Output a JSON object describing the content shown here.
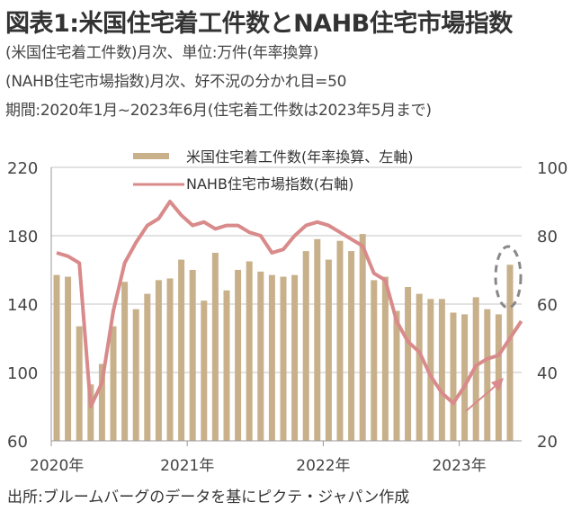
{
  "header": {
    "title": "図表1:米国住宅着工件数とNAHB住宅市場指数",
    "subtitles": [
      "(米国住宅着工件数)月次、単位:万件(年率換算)",
      "(NAHB住宅市場指数)月次、好不況の分かれ目=50",
      "期間:2020年1月~2023年6月(住宅着工件数は2023年5月まで)"
    ]
  },
  "footer": {
    "source": "出所:ブルームバーグのデータを基にピクテ・ジャパン作成"
  },
  "colors": {
    "bar": "#c8b08a",
    "line": "#d98a8a",
    "grid": "#e2e2e2",
    "annotation": "#888888"
  },
  "chart_data": {
    "type": "bar+line",
    "title": "米国住宅着工件数とNAHB住宅市場指数",
    "x_tick_labels": [
      "2020年",
      "2021年",
      "2022年",
      "2023年"
    ],
    "left_axis": {
      "ylim": [
        60,
        220
      ],
      "ticks": [
        "220",
        "180",
        "140",
        "100",
        "60"
      ]
    },
    "right_axis": {
      "ylim": [
        20,
        100
      ],
      "ticks": [
        "100",
        "80",
        "60",
        "40",
        "20"
      ]
    },
    "legend": {
      "placement": "top-center",
      "entries": [
        "米国住宅着工件数(年率換算、左軸)",
        "NAHB住宅市場指数(右軸)"
      ]
    },
    "grid": true,
    "series": [
      {
        "name": "米国住宅着工件数(年率換算、左軸)",
        "type": "bar",
        "axis": "left",
        "start": "2020-01",
        "values": [
          157,
          156,
          127,
          93,
          105,
          127,
          153,
          137,
          146,
          154,
          155,
          166,
          160,
          142,
          170,
          148,
          160,
          165,
          159,
          157,
          156,
          157,
          171,
          178,
          166,
          177,
          171,
          181,
          154,
          156,
          136,
          150,
          146,
          143,
          143,
          135,
          134,
          144,
          137,
          134,
          163
        ]
      },
      {
        "name": "NAHB住宅市場指数(右軸)",
        "type": "line",
        "axis": "right",
        "start": "2020-01",
        "values": [
          75,
          74,
          72,
          30,
          37,
          58,
          72,
          78,
          83,
          85,
          90,
          86,
          83,
          84,
          82,
          83,
          83,
          81,
          80,
          75,
          76,
          80,
          83,
          84,
          83,
          81,
          79,
          77,
          69,
          67,
          55,
          49,
          46,
          39,
          34,
          31,
          36,
          42,
          44,
          45,
          50,
          55
        ]
      }
    ],
    "annotations": [
      {
        "type": "dashed-ellipse",
        "target": "2023-05 bar"
      },
      {
        "type": "arrow",
        "direction": "up-right",
        "target": "NAHB rebound 2023"
      }
    ]
  }
}
